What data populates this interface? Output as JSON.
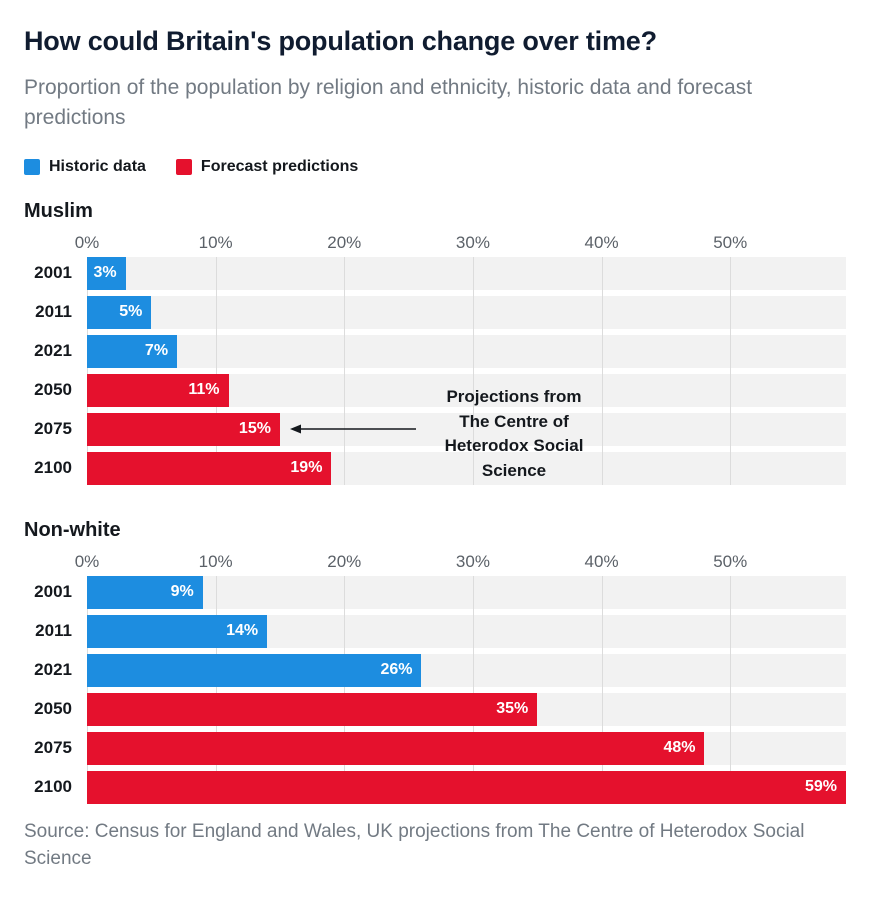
{
  "header": {
    "title": "How could Britain's population change over time?",
    "subtitle": "Proportion of the population by religion and ethnicity, historic data and forecast predictions"
  },
  "legend": [
    {
      "label": "Historic data",
      "color": "#1d8de0",
      "key": "historic"
    },
    {
      "label": "Forecast predictions",
      "color": "#e5112d",
      "key": "forecast"
    }
  ],
  "annotation": {
    "text": "Projections from\nThe Centre of\nHeterodox Social\nScience",
    "target_year": "2075",
    "target_chart": "Muslim"
  },
  "source": "Source: Census for England and Wales, UK projections from The Centre of Heterodox Social Science",
  "chart_data": [
    {
      "type": "bar",
      "orientation": "horizontal",
      "title": "Muslim",
      "categories": [
        "2001",
        "2011",
        "2021",
        "2050",
        "2075",
        "2100"
      ],
      "values": [
        3,
        5,
        7,
        11,
        15,
        19
      ],
      "value_labels": [
        "3%",
        "5%",
        "7%",
        "11%",
        "15%",
        "19%"
      ],
      "series_type": [
        "historic",
        "historic",
        "historic",
        "forecast",
        "forecast",
        "forecast"
      ],
      "xlim": [
        0,
        59
      ],
      "ticks": [
        0,
        10,
        20,
        30,
        40,
        50
      ],
      "tick_labels": [
        "0%",
        "10%",
        "20%",
        "30%",
        "40%",
        "50%"
      ],
      "grid": true,
      "legend_position": "top"
    },
    {
      "type": "bar",
      "orientation": "horizontal",
      "title": "Non-white",
      "categories": [
        "2001",
        "2011",
        "2021",
        "2050",
        "2075",
        "2100"
      ],
      "values": [
        9,
        14,
        26,
        35,
        48,
        59
      ],
      "value_labels": [
        "9%",
        "14%",
        "26%",
        "35%",
        "48%",
        "59%"
      ],
      "series_type": [
        "historic",
        "historic",
        "historic",
        "forecast",
        "forecast",
        "forecast"
      ],
      "xlim": [
        0,
        59
      ],
      "ticks": [
        0,
        10,
        20,
        30,
        40,
        50
      ],
      "tick_labels": [
        "0%",
        "10%",
        "20%",
        "30%",
        "40%",
        "50%"
      ],
      "grid": true,
      "legend_position": "top"
    }
  ]
}
